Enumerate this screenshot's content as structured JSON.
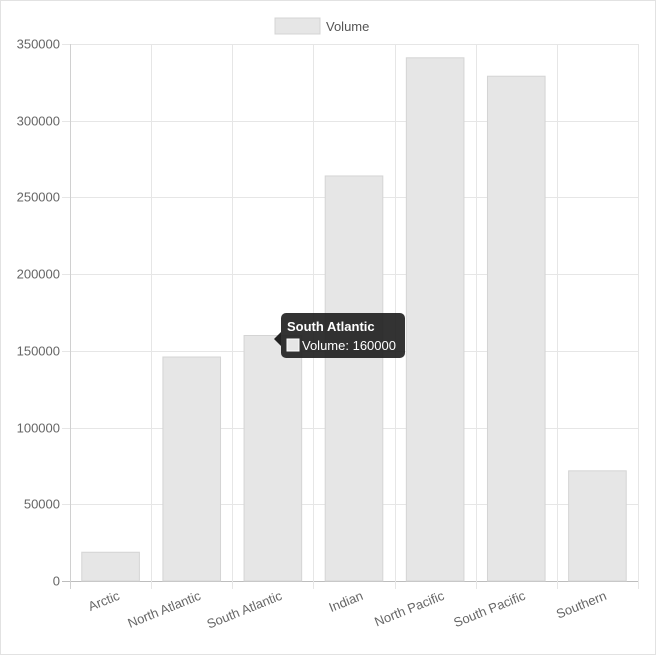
{
  "chart_data": {
    "type": "bar",
    "categories": [
      "Arctic",
      "North Atlantic",
      "South Atlantic",
      "Indian",
      "North Pacific",
      "South Pacific",
      "Southern"
    ],
    "series": [
      {
        "name": "Volume",
        "values": [
          18750,
          146000,
          160000,
          264000,
          341000,
          329000,
          71800
        ]
      }
    ],
    "ylim": [
      0,
      350000
    ],
    "yticks": [
      0,
      50000,
      100000,
      150000,
      200000,
      250000,
      300000,
      350000
    ],
    "grid": true,
    "legend": "top-center",
    "colors": {
      "bar_fill": "#e6e6e6",
      "bar_stroke": "#d4d4d4",
      "grid": "#e6e6e6",
      "tooltip_bg": "#222222"
    }
  },
  "tooltip": {
    "category_index": 2,
    "title": "South Atlantic",
    "label": "Volume: 160000"
  }
}
